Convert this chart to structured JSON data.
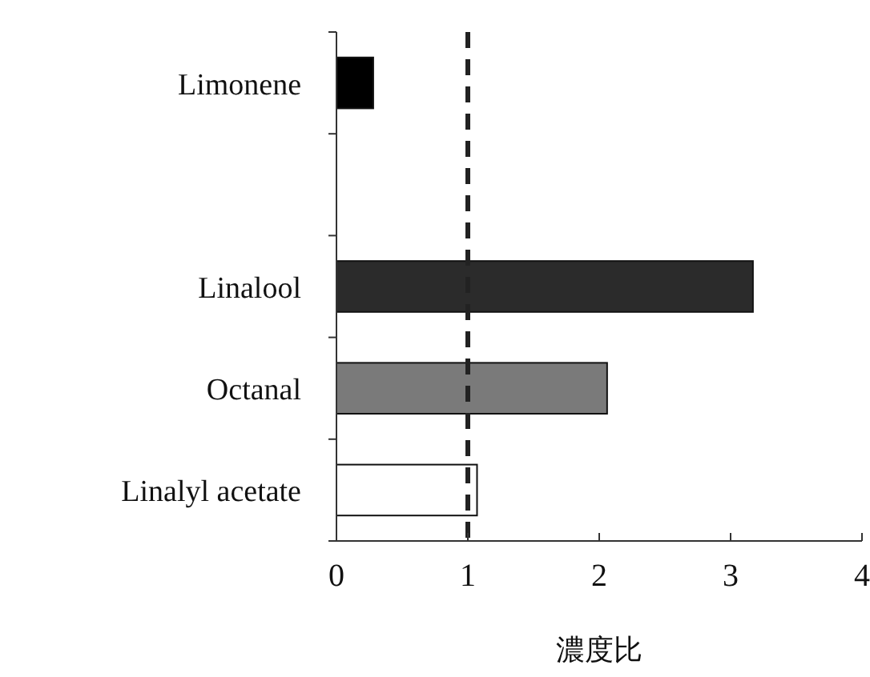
{
  "chart_data": {
    "type": "bar",
    "orientation": "horizontal",
    "xlabel": "濃度比",
    "categories": [
      "Limonene",
      null,
      "Linalool",
      "Octanal",
      "Linalyl acetate"
    ],
    "values": [
      0.28,
      null,
      3.17,
      2.06,
      1.07
    ],
    "colors": [
      "#000000",
      null,
      "#2b2b2b",
      "#7a7a7a",
      "#ffffff"
    ],
    "xlim": [
      0,
      4
    ],
    "xticks": [
      0,
      1,
      2,
      3,
      4
    ],
    "ref_lines": [
      {
        "axis": "x",
        "value": 1,
        "color": "#222222",
        "line_style": "dashed"
      }
    ],
    "grid": false
  }
}
